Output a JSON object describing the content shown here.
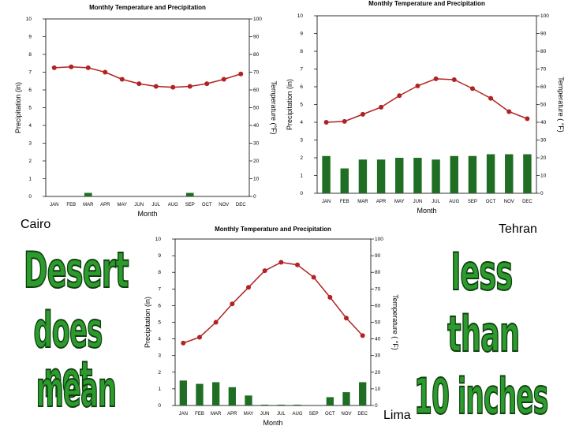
{
  "labels": {
    "cairo": "Cairo",
    "tehran": "Tehran",
    "lima": "Lima"
  },
  "slogan": {
    "left": [
      "Desert",
      "does not",
      "mean"
    ],
    "right": [
      "less",
      "than",
      "10 inches"
    ]
  },
  "colors": {
    "temp_line": "#b22222",
    "precip_bar": "#1f6e24",
    "slogan_fill": "#2c9a2c",
    "slogan_outline": "#0f3f0f"
  },
  "chart_data": [
    {
      "id": "cairo",
      "type": "bar+line",
      "title": "Monthly Temperature and Precipitation",
      "xlabel": "Month",
      "ylabel_left": "Precipitation (in)",
      "ylabel_right": "Temperature (°F)",
      "categories": [
        "JAN",
        "FEB",
        "MAR",
        "APR",
        "MAY",
        "JUN",
        "JUL",
        "AUG",
        "SEP",
        "OCT",
        "NOV",
        "DEC"
      ],
      "yticks_left": [
        "0",
        "1",
        "2",
        "3",
        "4",
        "5",
        "6",
        "7",
        "8",
        "9",
        "10"
      ],
      "yticks_right": [
        "0",
        "10",
        "20",
        "30",
        "40",
        "50",
        "60",
        "70",
        "80",
        "90",
        "100"
      ],
      "ylim_left": [
        0,
        10
      ],
      "ylim_right": [
        0,
        100
      ],
      "precipitation": [
        0,
        0,
        0.2,
        0,
        0,
        0,
        0,
        0,
        0.2,
        0,
        0,
        0
      ],
      "temperature": [
        72.5,
        73,
        72.5,
        70,
        66,
        63.5,
        62,
        61.5,
        62,
        63.5,
        66,
        69
      ]
    },
    {
      "id": "tehran",
      "type": "bar+line",
      "title": "Monthly Temperature and Precipitation",
      "xlabel": "Month",
      "ylabel_left": "Precipitation (in)",
      "ylabel_right": "Temperature ( °F)",
      "categories": [
        "JAN",
        "FEB",
        "MAR",
        "APR",
        "MAY",
        "JUN",
        "JUL",
        "AUG",
        "SEP",
        "OCT",
        "NOV",
        "DEC"
      ],
      "yticks_left": [
        "0",
        "1",
        "2",
        "3",
        "4",
        "5",
        "6",
        "7",
        "8",
        "9",
        "10"
      ],
      "yticks_right": [
        "0",
        "10",
        "20",
        "30",
        "40",
        "50",
        "60",
        "70",
        "80",
        "90",
        "100"
      ],
      "ylim_left": [
        0,
        10
      ],
      "ylim_right": [
        0,
        100
      ],
      "precipitation": [
        2.1,
        1.4,
        1.9,
        1.9,
        2.0,
        2.0,
        1.9,
        2.1,
        2.1,
        2.2,
        2.2,
        2.2
      ],
      "temperature": [
        40,
        40.5,
        44.5,
        48.5,
        55,
        60.5,
        64.5,
        64,
        59,
        53.5,
        46,
        42
      ]
    },
    {
      "id": "lima",
      "type": "bar+line",
      "title": "Monthly Temperature and Precipitation",
      "xlabel": "Month",
      "ylabel_left": "Precipitation (in)",
      "ylabel_right": "Temperature ( °F)",
      "categories": [
        "JAN",
        "FEB",
        "MAR",
        "APR",
        "MAY",
        "JUN",
        "JUL",
        "AUG",
        "SEP",
        "OCT",
        "NOV",
        "DEC"
      ],
      "yticks_left": [
        "0",
        "1",
        "2",
        "3",
        "4",
        "5",
        "6",
        "7",
        "8",
        "9",
        "10"
      ],
      "yticks_right": [
        "0",
        "10",
        "20",
        "30",
        "40",
        "50",
        "60",
        "70",
        "80",
        "90",
        "100"
      ],
      "ylim_left": [
        0,
        10
      ],
      "ylim_right": [
        0,
        100
      ],
      "precipitation": [
        1.5,
        1.3,
        1.4,
        1.1,
        0.6,
        0.05,
        0.05,
        0.05,
        0,
        0.5,
        0.8,
        1.4
      ],
      "temperature": [
        37.5,
        41,
        50,
        61,
        71,
        81,
        86,
        84.5,
        77,
        65,
        52.5,
        42
      ]
    }
  ]
}
